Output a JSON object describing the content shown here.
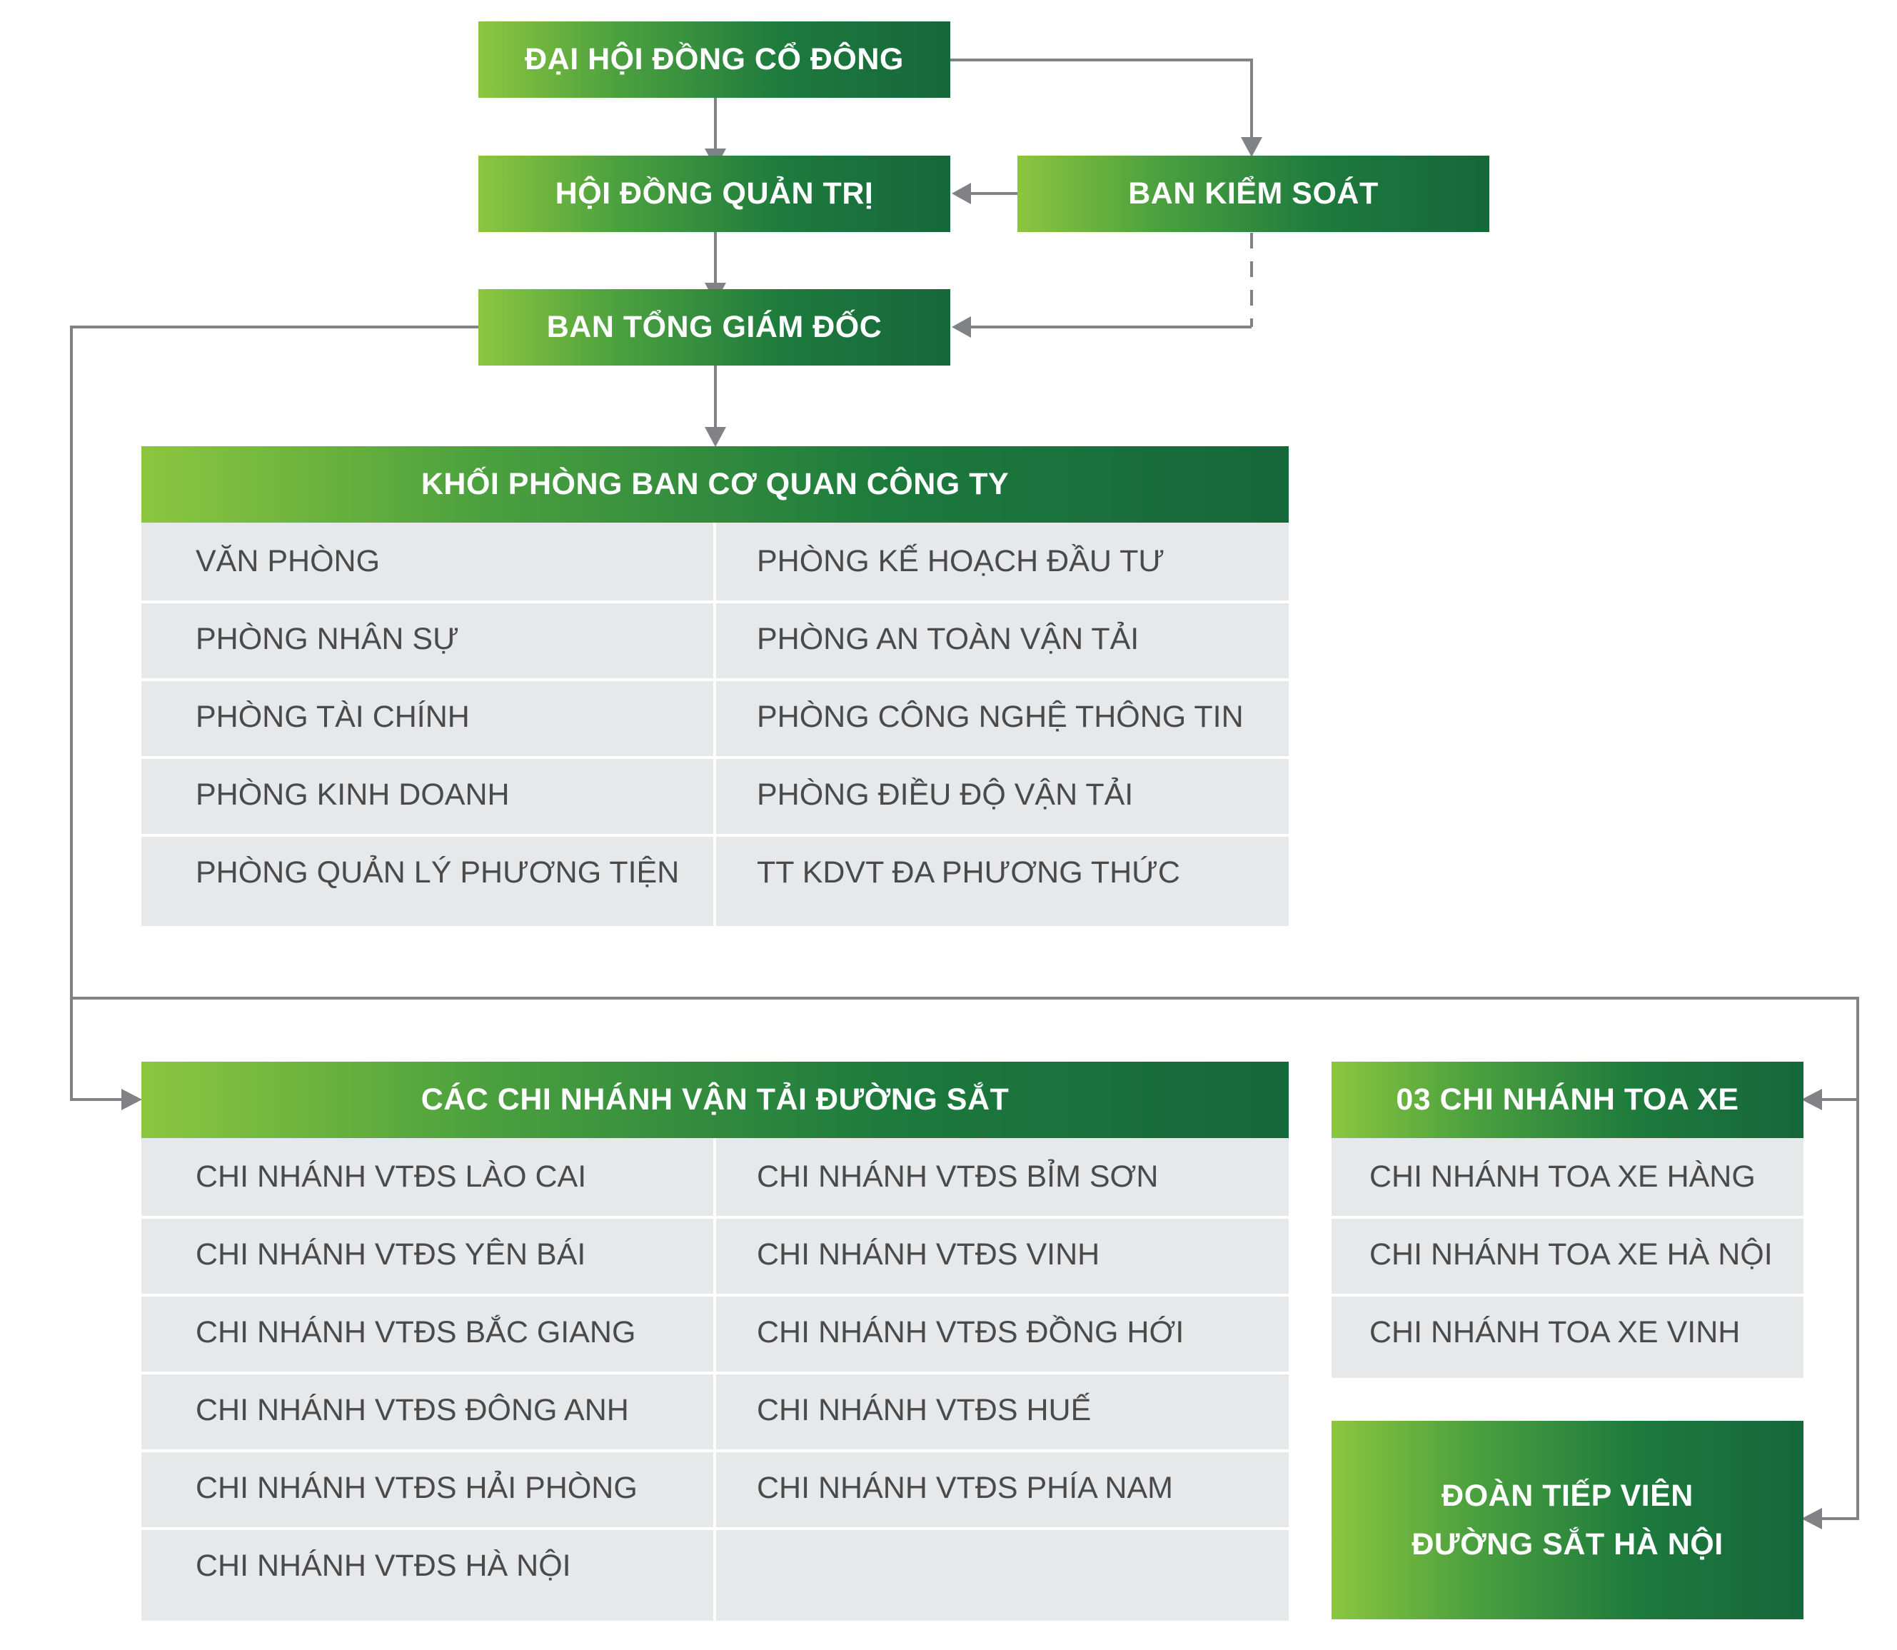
{
  "colors": {
    "gradient_start": "#8cc63f",
    "gradient_end": "#16673a",
    "cell_bg": "#e7e8ea",
    "cell_text": "#4a4a4a",
    "connector": "#808285"
  },
  "nodes": {
    "shareholders": "ĐẠI HỘI ĐỒNG CỔ ĐÔNG",
    "board": "HỘI ĐỒNG QUẢN TRỊ",
    "supervisory": "BAN KIỂM SOÁT",
    "management": "BAN TỔNG GIÁM ĐỐC"
  },
  "departments": {
    "title": "KHỐI PHÒNG BAN CƠ QUAN CÔNG TY",
    "left": [
      "VĂN PHÒNG",
      "PHÒNG NHÂN SỰ",
      "PHÒNG TÀI CHÍNH",
      "PHÒNG KINH DOANH",
      "PHÒNG QUẢN LÝ PHƯƠNG TIỆN"
    ],
    "right": [
      "PHÒNG KẾ HOẠCH ĐẦU TƯ",
      "PHÒNG AN TOÀN VẬN TẢI",
      "PHÒNG CÔNG NGHỆ THÔNG TIN",
      "PHÒNG ĐIỀU ĐỘ VẬN TẢI",
      "TT KDVT ĐA PHƯƠNG THỨC"
    ]
  },
  "branches": {
    "title": "CÁC CHI NHÁNH VẬN TẢI ĐƯỜNG SẮT",
    "left": [
      "CHI NHÁNH VTĐS LÀO CAI",
      "CHI NHÁNH VTĐS YÊN BÁI",
      "CHI NHÁNH VTĐS BẮC GIANG",
      "CHI NHÁNH VTĐS ĐÔNG ANH",
      "CHI NHÁNH VTĐS HẢI PHÒNG",
      "CHI NHÁNH VTĐS HÀ NỘI"
    ],
    "right": [
      "CHI NHÁNH VTĐS BỈM SƠN",
      "CHI NHÁNH VTĐS VINH",
      "CHI NHÁNH VTĐS ĐỒNG HỚI",
      "CHI NHÁNH VTĐS HUẾ",
      "CHI NHÁNH VTĐS PHÍA NAM"
    ]
  },
  "wagons": {
    "title": "03 CHI NHÁNH TOA XE",
    "items": [
      "CHI NHÁNH TOA XE HÀNG",
      "CHI NHÁNH TOA XE HÀ NỘI",
      "CHI NHÁNH TOA XE VINH"
    ]
  },
  "attendants": {
    "line1": "ĐOÀN TIẾP VIÊN",
    "line2": "ĐƯỜNG SẮT HÀ NỘI"
  }
}
